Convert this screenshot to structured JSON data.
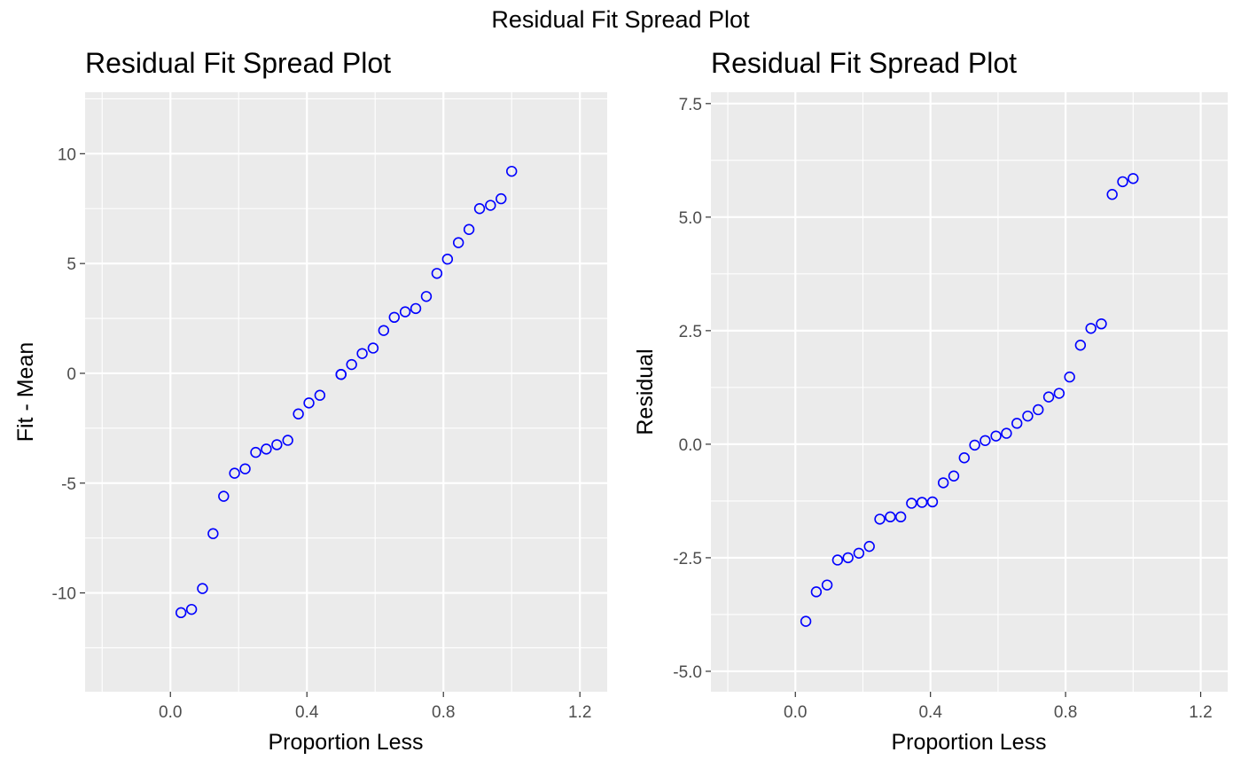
{
  "suptitle": "Residual Fit Spread Plot",
  "colors": {
    "panel_bg": "#EBEBEB",
    "grid": "#FFFFFF",
    "point": "#0000FF",
    "tick_text": "#4D4D4D"
  },
  "chart_data": [
    {
      "type": "scatter",
      "title": "Residual Fit Spread Plot",
      "xlabel": "Proportion Less",
      "ylabel": "Fit - Mean",
      "xlim": [
        -0.25,
        1.28
      ],
      "ylim": [
        -14.5,
        12.8
      ],
      "xticks": [
        0.0,
        0.4,
        0.8,
        1.2
      ],
      "xtick_labels": [
        "0.0",
        "0.4",
        "0.8",
        "1.2"
      ],
      "yticks": [
        -10,
        -5,
        0,
        5,
        10
      ],
      "ytick_labels": [
        "-10",
        "-5",
        "0",
        "5",
        "10"
      ],
      "grid": true,
      "marker": "open-circle",
      "x": [
        0.031,
        0.062,
        0.094,
        0.125,
        0.156,
        0.188,
        0.219,
        0.25,
        0.281,
        0.312,
        0.344,
        0.375,
        0.406,
        0.438,
        0.5,
        0.5,
        0.531,
        0.562,
        0.594,
        0.625,
        0.656,
        0.688,
        0.719,
        0.75,
        0.781,
        0.812,
        0.844,
        0.875,
        0.906,
        0.938,
        0.969,
        1.0
      ],
      "y": [
        -10.9,
        -10.75,
        -9.8,
        -7.3,
        -5.6,
        -4.55,
        -4.35,
        -3.6,
        -3.45,
        -3.25,
        -3.05,
        -1.85,
        -1.35,
        -1.0,
        -0.05,
        -0.05,
        0.4,
        0.9,
        1.15,
        1.95,
        2.55,
        2.8,
        2.95,
        3.5,
        4.55,
        5.2,
        5.95,
        6.55,
        7.5,
        7.65,
        7.95,
        9.2
      ]
    },
    {
      "type": "scatter",
      "title": "Residual Fit Spread Plot",
      "xlabel": "Proportion Less",
      "ylabel": "Residual",
      "xlim": [
        -0.25,
        1.28
      ],
      "ylim": [
        -5.45,
        7.75
      ],
      "xticks": [
        0.0,
        0.4,
        0.8,
        1.2
      ],
      "xtick_labels": [
        "0.0",
        "0.4",
        "0.8",
        "1.2"
      ],
      "yticks": [
        -5,
        -2.5,
        0,
        2.5,
        5,
        7.5
      ],
      "ytick_labels": [
        "-5.0",
        "-2.5",
        "0.0",
        "2.5",
        "5.0",
        "7.5"
      ],
      "grid": true,
      "marker": "open-circle",
      "x": [
        0.031,
        0.062,
        0.094,
        0.125,
        0.156,
        0.188,
        0.219,
        0.25,
        0.281,
        0.312,
        0.344,
        0.375,
        0.406,
        0.438,
        0.469,
        0.5,
        0.531,
        0.562,
        0.594,
        0.625,
        0.656,
        0.688,
        0.719,
        0.75,
        0.781,
        0.812,
        0.844,
        0.875,
        0.906,
        0.938,
        0.969,
        1.0
      ],
      "y": [
        -3.9,
        -3.25,
        -3.1,
        -2.55,
        -2.5,
        -2.4,
        -2.25,
        -1.65,
        -1.6,
        -1.6,
        -1.3,
        -1.28,
        -1.27,
        -0.85,
        -0.7,
        -0.3,
        -0.02,
        0.08,
        0.18,
        0.24,
        0.46,
        0.62,
        0.76,
        1.04,
        1.12,
        1.48,
        2.18,
        2.55,
        2.65,
        5.5,
        5.78,
        5.85
      ]
    }
  ]
}
